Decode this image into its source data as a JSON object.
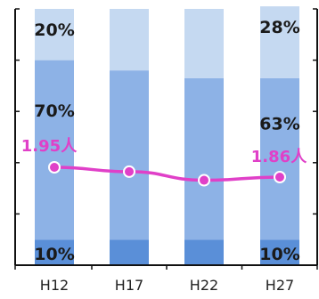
{
  "chart_data": {
    "type": "bar",
    "stacked": true,
    "categories": [
      "H12",
      "H17",
      "H22",
      "H27"
    ],
    "series": [
      {
        "values": [
          10,
          10,
          10,
          10
        ],
        "color": "#5a8fd8"
      },
      {
        "values": [
          70,
          66,
          63,
          63
        ],
        "color": "#8db2e6"
      },
      {
        "values": [
          20,
          24,
          27,
          28
        ],
        "color": "#c5d9f1"
      }
    ],
    "ylim": [
      0,
      100
    ],
    "segment_labels": [
      {
        "category": "H12",
        "series": 0,
        "text": "10%"
      },
      {
        "category": "H12",
        "series": 1,
        "text": "70%"
      },
      {
        "category": "H12",
        "series": 2,
        "text": "20%"
      },
      {
        "category": "H27",
        "series": 0,
        "text": "10%"
      },
      {
        "category": "H27",
        "series": 1,
        "text": "63%"
      },
      {
        "category": "H27",
        "series": 2,
        "text": "28%"
      }
    ],
    "line": {
      "values": [
        1.95,
        1.91,
        1.88,
        1.86
      ],
      "color": "#e040c8",
      "labels": [
        {
          "category": "H12",
          "text": "1.95人"
        },
        {
          "category": "H27",
          "text": "1.86人"
        }
      ]
    }
  }
}
